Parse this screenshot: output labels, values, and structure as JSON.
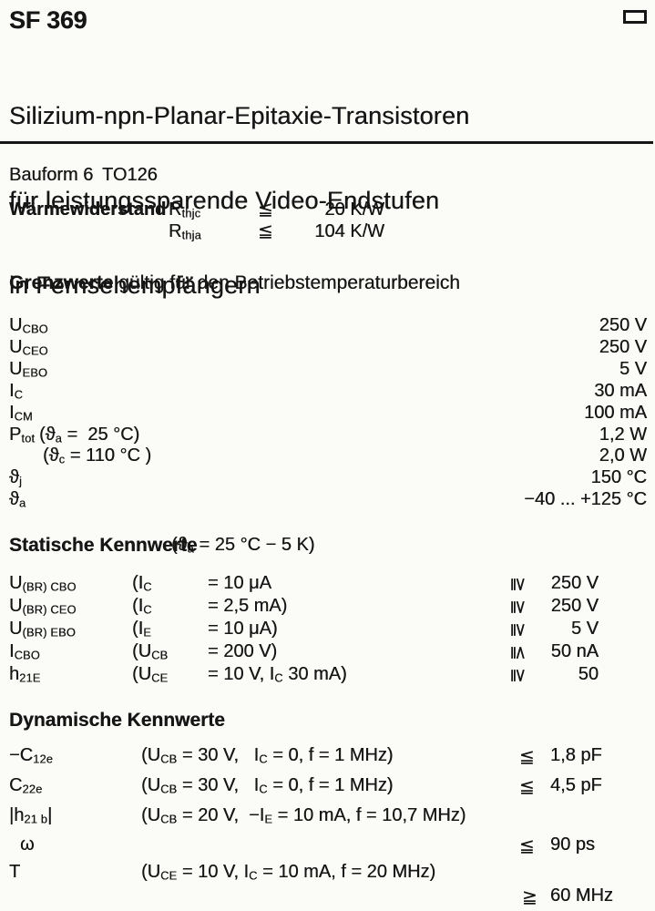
{
  "header": {
    "title": "SF 369",
    "subtitle_lines": [
      "Silizium-npn-Planar-Epitaxie-Transistoren",
      "für leistungssparende Video-Endstufen",
      "in Fernsehempfängern"
    ],
    "corner_mark": "rectangle-outline"
  },
  "bauform": {
    "label": "Bauform 6",
    "package": "TO126"
  },
  "thermal": {
    "label": "Wärmewiderstand",
    "rows": [
      {
        "sym": [
          [
            "t",
            "R"
          ],
          [
            "s",
            "thjc"
          ]
        ],
        "rel": "≦",
        "value": "20 K/W"
      },
      {
        "sym": [
          [
            "t",
            "R"
          ],
          [
            "s",
            "thja"
          ]
        ],
        "rel": "≦",
        "value": "104 K/W"
      }
    ]
  },
  "grenzwerte": {
    "heading": {
      "bold": "Grenzwerte",
      "rest": " gültig für den Betriebstemperaturbereich"
    },
    "rows": [
      {
        "sym": [
          [
            "t",
            "U"
          ],
          [
            "s",
            "CBO"
          ]
        ],
        "value": "250 V"
      },
      {
        "sym": [
          [
            "t",
            "U"
          ],
          [
            "s",
            "CEO"
          ]
        ],
        "value": "250 V"
      },
      {
        "sym": [
          [
            "t",
            "U"
          ],
          [
            "s",
            "EBO"
          ]
        ],
        "value": "5 V"
      },
      {
        "sym": [
          [
            "t",
            "I"
          ],
          [
            "s",
            "C"
          ]
        ],
        "value": "30 mA"
      },
      {
        "sym": [
          [
            "t",
            "I"
          ],
          [
            "s",
            "CM"
          ]
        ],
        "value": "100 mA"
      },
      {
        "sym": [
          [
            "t",
            "P"
          ],
          [
            "s",
            "tot"
          ]
        ],
        "cond": [
          [
            "t",
            "(ϑ"
          ],
          [
            "s",
            "a"
          ],
          [
            "t",
            " =  25 °C)"
          ]
        ],
        "value": "1,2 W"
      },
      {
        "sym": [],
        "cond": [
          [
            "t",
            "(ϑ"
          ],
          [
            "s",
            "c"
          ],
          [
            "t",
            " = 110 °C )"
          ]
        ],
        "value": "2,0 W"
      },
      {
        "sym": [
          [
            "t",
            "ϑ"
          ],
          [
            "s",
            "j"
          ]
        ],
        "value": "150 °C"
      },
      {
        "sym": [
          [
            "t",
            "ϑ"
          ],
          [
            "s",
            "a"
          ]
        ],
        "value": "−40 ... +125 °C"
      }
    ]
  },
  "statische": {
    "heading": {
      "bold": "Statische Kennwerte",
      "cond": [
        [
          "t",
          "(ϑ"
        ],
        [
          "s",
          "a"
        ],
        [
          "t",
          " = 25 °C − 5 K)"
        ]
      ]
    },
    "rows": [
      {
        "sym": [
          [
            "t",
            "U"
          ],
          [
            "s",
            "(BR) CBO"
          ]
        ],
        "cond1": [
          [
            "t",
            "(I"
          ],
          [
            "s",
            "C"
          ]
        ],
        "cond2": [
          [
            "t",
            "= 10 μA"
          ]
        ],
        "rel": "≧",
        "value": "250 V"
      },
      {
        "sym": [
          [
            "t",
            "U"
          ],
          [
            "s",
            "(BR) CEO"
          ]
        ],
        "cond1": [
          [
            "t",
            "(I"
          ],
          [
            "s",
            "C"
          ]
        ],
        "cond2": [
          [
            "t",
            "= 2,5 mA)"
          ]
        ],
        "rel": "≧",
        "value": "250 V"
      },
      {
        "sym": [
          [
            "t",
            "U"
          ],
          [
            "s",
            "(BR) EBO"
          ]
        ],
        "cond1": [
          [
            "t",
            "(I"
          ],
          [
            "s",
            "E"
          ]
        ],
        "cond2": [
          [
            "t",
            "= 10 μA)"
          ]
        ],
        "rel": "≧",
        "value": "5 V"
      },
      {
        "sym": [
          [
            "t",
            "I"
          ],
          [
            "s",
            "CBO"
          ]
        ],
        "cond1": [
          [
            "t",
            "(U"
          ],
          [
            "s",
            "CB"
          ]
        ],
        "cond2": [
          [
            "t",
            "= 200 V)"
          ]
        ],
        "rel": "≦",
        "value": "50 nA"
      },
      {
        "sym": [
          [
            "t",
            "h"
          ],
          [
            "s",
            "21E"
          ]
        ],
        "cond1": [
          [
            "t",
            "(U"
          ],
          [
            "s",
            "CE"
          ]
        ],
        "cond2": [
          [
            "t",
            "= 10 V, I"
          ],
          [
            "s",
            "C"
          ],
          [
            "t",
            " 30 mA)"
          ]
        ],
        "rel": "≧",
        "value": "50"
      }
    ]
  },
  "dynamische": {
    "heading": "Dynamische Kennwerte",
    "rows": [
      {
        "sym": [
          [
            "t",
            "−C"
          ],
          [
            "s",
            "12e"
          ]
        ],
        "cond": [
          [
            "t",
            "(U"
          ],
          [
            "s",
            "CB"
          ],
          [
            "t",
            " = 30 V,   I"
          ],
          [
            "s",
            "C"
          ],
          [
            "t",
            " = 0, f = 1 MHz)"
          ]
        ],
        "rel": "≦",
        "value": "1,8 pF"
      },
      {
        "sym": [
          [
            "t",
            "C"
          ],
          [
            "s",
            "22e"
          ]
        ],
        "cond": [
          [
            "t",
            "(U"
          ],
          [
            "s",
            "CB"
          ],
          [
            "t",
            " = 30 V,   I"
          ],
          [
            "s",
            "C"
          ],
          [
            "t",
            " = 0, f = 1 MHz)"
          ]
        ],
        "rel": "≦",
        "value": "4,5 pF"
      },
      {
        "sym": [
          [
            "t",
            "|h"
          ],
          [
            "s",
            "21 b"
          ],
          [
            "t",
            "|"
          ]
        ],
        "cond": [
          [
            "t",
            "(U"
          ],
          [
            "s",
            "CB"
          ],
          [
            "t",
            " = 20 V,  −I"
          ],
          [
            "s",
            "E"
          ],
          [
            "t",
            " = 10 mA, f = 10,7 MHz)"
          ]
        ]
      },
      {
        "sym": [
          [
            "t",
            "ω"
          ]
        ],
        "rel": "≦",
        "value": "90 ps"
      },
      {
        "sym": [
          [
            "t",
            "T"
          ]
        ],
        "cond": [
          [
            "t",
            "(U"
          ],
          [
            "s",
            "CE"
          ],
          [
            "t",
            " = 10 V, I"
          ],
          [
            "s",
            "C"
          ],
          [
            "t",
            " = 10 mA, f = 20 MHz)"
          ]
        ]
      },
      {
        "rel": "≧",
        "value": "60 MHz"
      }
    ]
  }
}
